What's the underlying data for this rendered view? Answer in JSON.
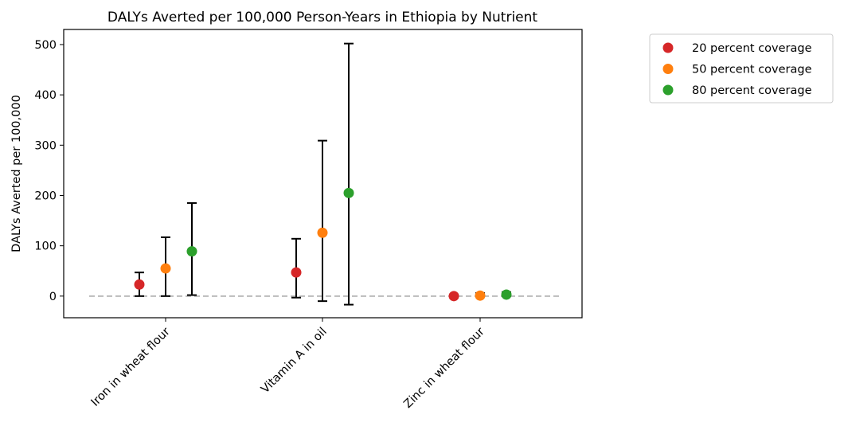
{
  "chart_data": {
    "type": "scatter",
    "title": "DALYs Averted per 100,000 Person-Years in Ethiopia by Nutrient",
    "xlabel": "",
    "ylabel": "DALYs Averted per 100,000",
    "categories": [
      "Iron in wheat flour",
      "Vitamin A in oil",
      "Zinc in wheat flour"
    ],
    "ylim": [
      -43,
      530
    ],
    "yticks": [
      0,
      100,
      200,
      300,
      400,
      500
    ],
    "reference_line": {
      "y": 0,
      "style": "dashed",
      "color": "#bbbbbb"
    },
    "series": [
      {
        "name": "20 percent coverage",
        "color": "#d62728",
        "values": [
          23,
          47,
          0
        ],
        "lower": [
          0,
          -3,
          -1
        ],
        "upper": [
          47,
          114,
          3
        ]
      },
      {
        "name": "50 percent coverage",
        "color": "#ff7f0e",
        "values": [
          55,
          126,
          1
        ],
        "lower": [
          0,
          -10,
          -1
        ],
        "upper": [
          117,
          309,
          6
        ]
      },
      {
        "name": "80 percent coverage",
        "color": "#2ca02c",
        "values": [
          89,
          205,
          3
        ],
        "lower": [
          2,
          -17,
          0
        ],
        "upper": [
          185,
          502,
          8
        ]
      }
    ],
    "legend_position": "outside-top-right",
    "grid": false
  }
}
